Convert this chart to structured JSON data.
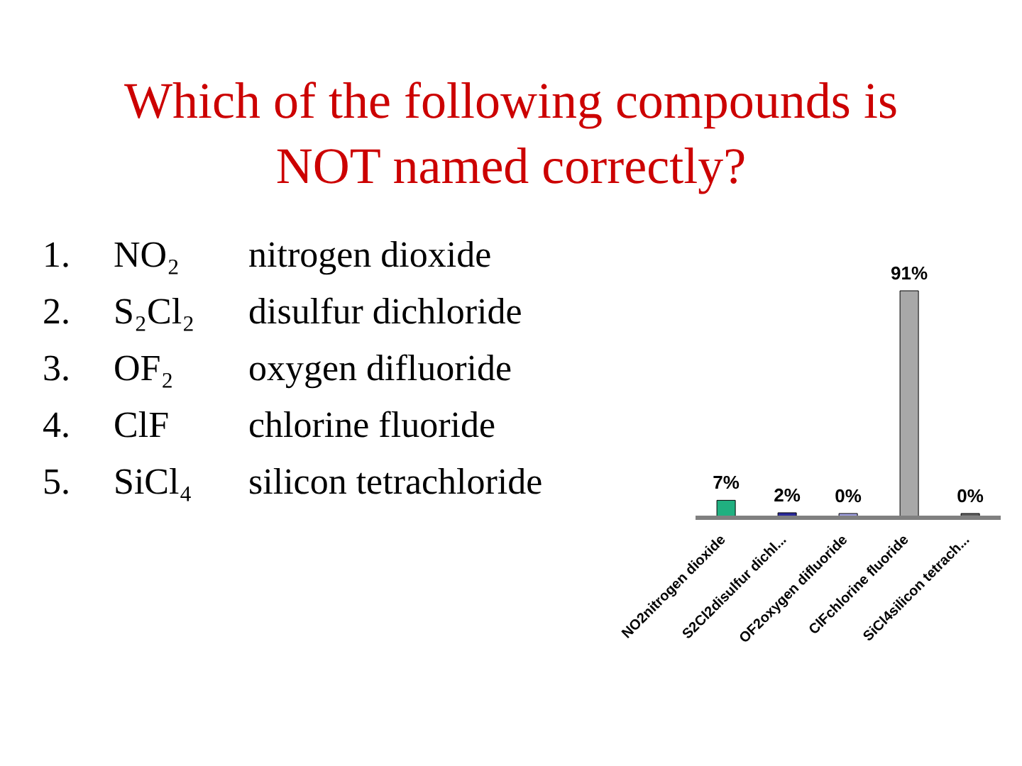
{
  "chart_data": {
    "type": "bar",
    "title": "Which of the following compounds is NOT named correctly?",
    "annotations": [
      "1.\tNO₂\tnitrogen dioxide",
      "2.\tS₂Cl₂\tdisulfur dichloride",
      "3.\tOF₂\toxygen difluoride",
      "4.\tClF\tchlorine fluoride",
      "5.\tSiCl₄\tsilicon tetrachloride"
    ],
    "categories": [
      "NO2nitrogen dioxide",
      "S2Cl2disulfur dichl...",
      "OF2oxygen difluoride",
      "ClFchlorine fluoride",
      "SiCl4silicon tetrach..."
    ],
    "values": [
      7,
      2,
      0,
      91,
      0
    ],
    "colors": [
      "#20b080",
      "#2a2a9a",
      "#a0a0e0",
      "#a8a8a8",
      "#606060"
    ],
    "value_labels": [
      "7%",
      "2%",
      "0%",
      "91%",
      "0%"
    ]
  }
}
